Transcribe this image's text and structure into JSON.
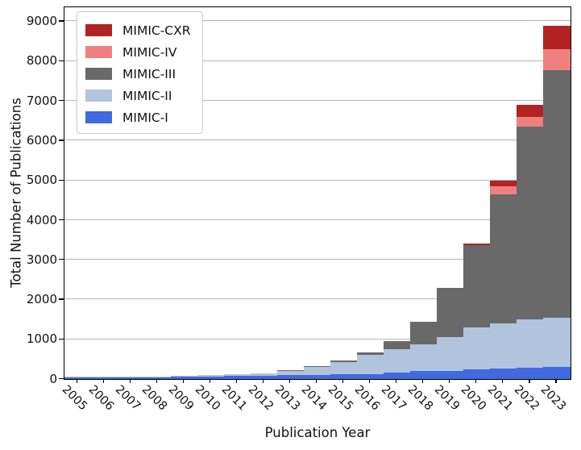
{
  "figure": {
    "kind": "stacked-bar-chart",
    "background": "#ffffff"
  },
  "legend": {
    "position": "upper left",
    "items": [
      {
        "label": "MIMIC-CXR",
        "color": "#B22222"
      },
      {
        "label": "MIMIC-IV",
        "color": "#F08080"
      },
      {
        "label": "MIMIC-III",
        "color": "#696969"
      },
      {
        "label": "MIMIC-II",
        "color": "#B0C4DE"
      },
      {
        "label": "MIMIC-I",
        "color": "#4169E1"
      }
    ]
  },
  "chart_data": {
    "type": "bar",
    "stacked": true,
    "title": "",
    "xlabel": "Publication Year",
    "ylabel": "Total Number of Publications",
    "categories": [
      "2005",
      "2006",
      "2007",
      "2008",
      "2009",
      "2010",
      "2011",
      "2012",
      "2013",
      "2014",
      "2015",
      "2016",
      "2017",
      "2018",
      "2019",
      "2020",
      "2021",
      "2022",
      "2023"
    ],
    "series": [
      {
        "name": "MIMIC-I",
        "color": "#4169E1",
        "values": [
          35,
          40,
          45,
          50,
          55,
          65,
          75,
          85,
          95,
          100,
          115,
          130,
          160,
          200,
          210,
          240,
          270,
          285,
          300
        ]
      },
      {
        "name": "MIMIC-II",
        "color": "#B0C4DE",
        "values": [
          5,
          10,
          15,
          15,
          20,
          35,
          45,
          65,
          115,
          200,
          320,
          475,
          600,
          680,
          840,
          1060,
          1140,
          1210,
          1240
        ]
      },
      {
        "name": "MIMIC-III",
        "color": "#696969",
        "values": [
          0,
          0,
          0,
          0,
          0,
          0,
          0,
          0,
          10,
          20,
          25,
          55,
          190,
          570,
          1250,
          2070,
          3230,
          4865,
          6240
        ]
      },
      {
        "name": "MIMIC-IV",
        "color": "#F08080",
        "values": [
          0,
          0,
          0,
          0,
          0,
          0,
          0,
          0,
          0,
          0,
          0,
          0,
          0,
          0,
          0,
          0,
          200,
          240,
          510
        ]
      },
      {
        "name": "MIMIC-CXR",
        "color": "#B22222",
        "values": [
          0,
          0,
          0,
          0,
          0,
          0,
          0,
          0,
          0,
          0,
          0,
          0,
          0,
          0,
          0,
          30,
          160,
          300,
          590
        ]
      }
    ],
    "totals": [
      40,
      50,
      60,
      65,
      75,
      100,
      120,
      150,
      220,
      320,
      460,
      660,
      950,
      1450,
      2300,
      3400,
      5000,
      6900,
      8880
    ],
    "ylim": [
      0,
      9340
    ],
    "yticks": [
      0,
      1000,
      2000,
      3000,
      4000,
      5000,
      6000,
      7000,
      8000,
      9000
    ],
    "grid": true,
    "gridcolor": "#b5b5b5",
    "legend_position": "upper left"
  }
}
